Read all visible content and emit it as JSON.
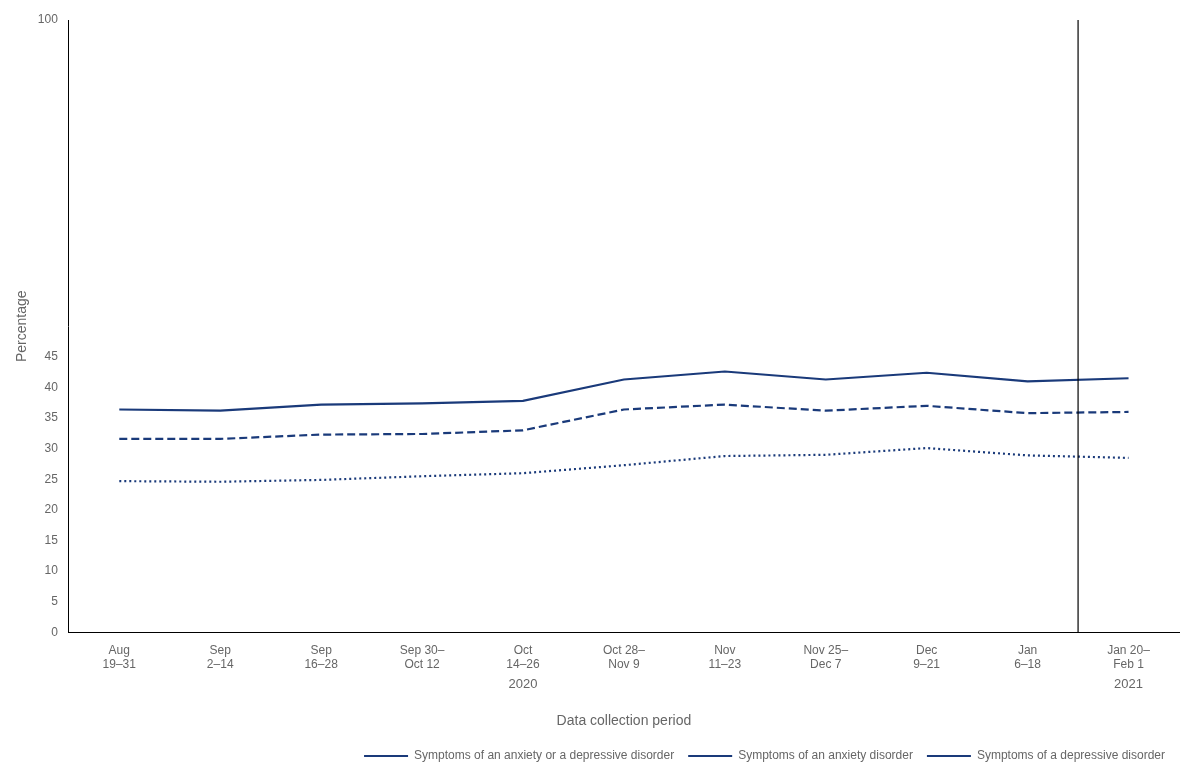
{
  "chart_data": {
    "type": "line",
    "xlabel": "Data collection period",
    "ylabel": "Percentage",
    "categories": [
      "Aug\n19–31",
      "Sep\n2–14",
      "Sep\n16–28",
      "Sep 30–\nOct 12",
      "Oct\n14–26",
      "Oct 28–\nNov 9",
      "Nov\n11–23",
      "Nov 25–\nDec 7",
      "Dec\n9–21",
      "Jan\n6–18",
      "Jan 20–\nFeb 1"
    ],
    "series": [
      {
        "name": "Symptoms of an anxiety or a depressive disorder",
        "color": "#1a3a7a",
        "line_style": "solid",
        "values": [
          36.4,
          36.2,
          37.2,
          37.4,
          37.8,
          41.3,
          42.6,
          41.3,
          42.4,
          41.0,
          41.5
        ]
      },
      {
        "name": "Symptoms of an anxiety disorder",
        "color": "#1a3a7a",
        "line_style": "dashed",
        "values": [
          31.6,
          31.6,
          32.3,
          32.4,
          33.0,
          36.4,
          37.2,
          36.2,
          37.0,
          35.8,
          36.0
        ]
      },
      {
        "name": "Symptoms of a depressive disorder",
        "color": "#1a3a7a",
        "line_style": "dotted",
        "values": [
          24.7,
          24.6,
          24.9,
          25.5,
          26.0,
          27.3,
          28.8,
          29.0,
          30.1,
          28.9,
          28.5
        ]
      }
    ],
    "ylim": [
      0,
      100
    ],
    "yticks": [
      0,
      5,
      10,
      15,
      20,
      25,
      30,
      35,
      40,
      45,
      100
    ],
    "grid": false,
    "legend": "lower right",
    "annotations": [
      {
        "type": "text",
        "text": "2020",
        "x": 4
      },
      {
        "type": "text",
        "text": "2021",
        "x": 10
      },
      {
        "type": "vline",
        "x": 9.5
      }
    ]
  }
}
